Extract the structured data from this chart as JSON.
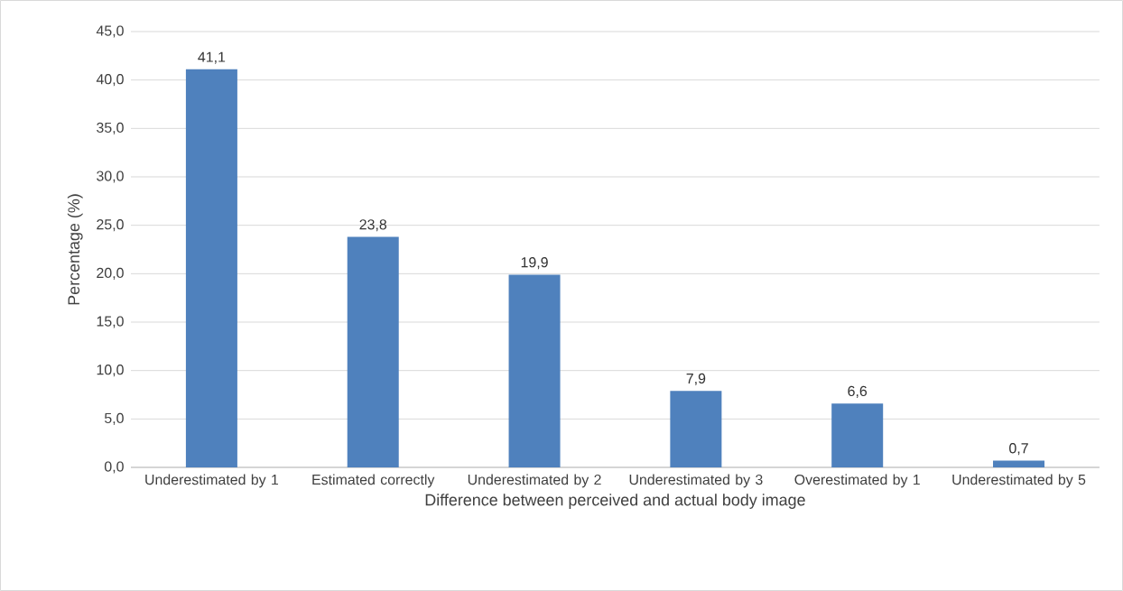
{
  "chart_data": {
    "type": "bar",
    "xlabel": "Difference between perceived and actual body image",
    "ylabel": "Percentage (%)",
    "categories": [
      "Underestimated by 1",
      "Estimated correctly",
      "Underestimated by 2",
      "Underestimated by 3",
      "Overestimated by 1",
      "Underestimated by 5"
    ],
    "values": [
      41.1,
      23.8,
      19.9,
      7.9,
      6.6,
      0.7
    ],
    "value_labels": [
      "41,1",
      "23,8",
      "19,9",
      "7,9",
      "6,6",
      "0,7"
    ],
    "color": "#4f81bd",
    "ylim": [
      0,
      45
    ],
    "yticks": [
      {
        "value": 0,
        "label": "0,0"
      },
      {
        "value": 5,
        "label": "5,0"
      },
      {
        "value": 10,
        "label": "10,0"
      },
      {
        "value": 15,
        "label": "15,0"
      },
      {
        "value": 20,
        "label": "20,0"
      },
      {
        "value": 25,
        "label": "25,0"
      },
      {
        "value": 30,
        "label": "30,0"
      },
      {
        "value": 35,
        "label": "35,0"
      },
      {
        "value": 40,
        "label": "40,0"
      },
      {
        "value": 45,
        "label": "45,0"
      }
    ],
    "grid": "y"
  }
}
